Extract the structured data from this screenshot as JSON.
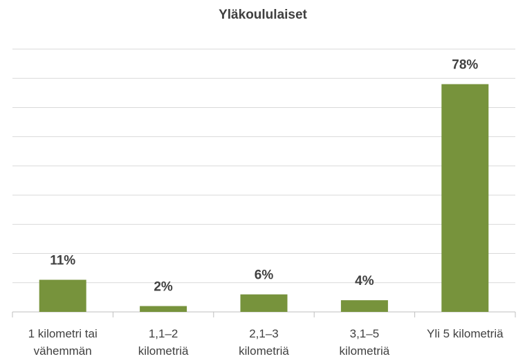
{
  "chart_data": {
    "type": "bar",
    "title": "Yläkoululaiset",
    "categories": [
      "1 kilometri tai\nvähemmän",
      "1,1–2\nkilometriä",
      "2,1–3\nkilometriä",
      "3,1–5\nkilometriä",
      "Yli 5 kilometriä"
    ],
    "values": [
      11,
      2,
      6,
      4,
      78
    ],
    "value_labels": [
      "11%",
      "2%",
      "6%",
      "4%",
      "78%"
    ],
    "color": "#77933c",
    "ylim": [
      0,
      90
    ],
    "yticks": [
      0,
      10,
      20,
      30,
      40,
      50,
      60,
      70,
      80,
      90
    ],
    "grid": true
  }
}
